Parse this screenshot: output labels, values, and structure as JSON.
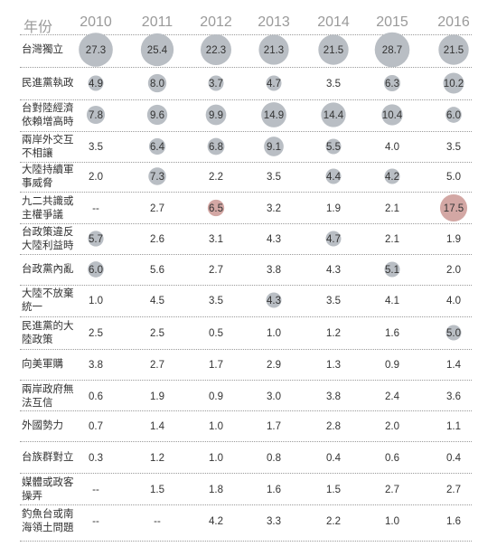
{
  "chart_data": {
    "type": "table",
    "corner_label": "年份",
    "years": [
      "2010",
      "2011",
      "2012",
      "2013",
      "2014",
      "2015",
      "2016"
    ],
    "rows": [
      {
        "label": "台灣獨立",
        "values": [
          "27.3",
          "25.4",
          "22.3",
          "21.3",
          "21.5",
          "28.7",
          "21.5"
        ],
        "circled": [
          true,
          true,
          true,
          true,
          true,
          true,
          true
        ]
      },
      {
        "label": "民進黨執政",
        "values": [
          "4.9",
          "8.0",
          "3.7",
          "4.7",
          "3.5",
          "6.3",
          "10.2"
        ],
        "circled": [
          true,
          true,
          true,
          true,
          false,
          true,
          true
        ]
      },
      {
        "label": "台對陸經濟依賴增高時",
        "values": [
          "7.8",
          "9.6",
          "9.9",
          "14.9",
          "14.4",
          "10.4",
          "6.0"
        ],
        "circled": [
          true,
          true,
          true,
          true,
          true,
          true,
          true
        ]
      },
      {
        "label": "兩岸外交互不相讓",
        "values": [
          "3.5",
          "6.4",
          "6.8",
          "9.1",
          "5.5",
          "4.0",
          "3.5"
        ],
        "circled": [
          false,
          true,
          true,
          true,
          true,
          false,
          false
        ]
      },
      {
        "label": "大陸持續軍事威脅",
        "values": [
          "2.0",
          "7.3",
          "2.2",
          "3.5",
          "4.4",
          "4.2",
          "5.0"
        ],
        "circled": [
          false,
          true,
          false,
          false,
          true,
          true,
          false
        ]
      },
      {
        "label": "九二共識或主權爭議",
        "values": [
          "--",
          "2.7",
          "6.5",
          "3.2",
          "1.9",
          "2.1",
          "17.5"
        ],
        "circled": [
          false,
          false,
          true,
          false,
          false,
          false,
          true
        ]
      },
      {
        "label": "台政策違反大陸利益時",
        "values": [
          "5.7",
          "2.6",
          "3.1",
          "4.3",
          "4.7",
          "2.1",
          "1.9"
        ],
        "circled": [
          true,
          false,
          false,
          false,
          true,
          false,
          false
        ]
      },
      {
        "label": "台政黨內亂",
        "values": [
          "6.0",
          "5.6",
          "2.7",
          "3.8",
          "4.3",
          "5.1",
          "2.0"
        ],
        "circled": [
          true,
          false,
          false,
          false,
          false,
          true,
          false
        ]
      },
      {
        "label": "大陸不放棄統一",
        "values": [
          "1.0",
          "4.5",
          "3.5",
          "4.3",
          "3.5",
          "4.1",
          "4.0"
        ],
        "circled": [
          false,
          false,
          false,
          true,
          false,
          false,
          false
        ]
      },
      {
        "label": "民進黨的大陸政策",
        "values": [
          "2.5",
          "2.5",
          "0.5",
          "1.0",
          "1.2",
          "1.6",
          "5.0"
        ],
        "circled": [
          false,
          false,
          false,
          false,
          false,
          false,
          true
        ]
      },
      {
        "label": "向美軍購",
        "values": [
          "3.8",
          "2.7",
          "1.7",
          "2.9",
          "1.3",
          "0.9",
          "1.4"
        ],
        "circled": [
          false,
          false,
          false,
          false,
          false,
          false,
          false
        ]
      },
      {
        "label": "兩岸政府無法互信",
        "values": [
          "0.6",
          "1.9",
          "0.9",
          "3.0",
          "3.8",
          "2.4",
          "3.6"
        ],
        "circled": [
          false,
          false,
          false,
          false,
          false,
          false,
          false
        ]
      },
      {
        "label": "外國勢力",
        "values": [
          "0.7",
          "1.4",
          "1.0",
          "1.7",
          "2.8",
          "2.0",
          "1.1"
        ],
        "circled": [
          false,
          false,
          false,
          false,
          false,
          false,
          false
        ]
      },
      {
        "label": "台族群對立",
        "values": [
          "0.3",
          "1.2",
          "1.0",
          "0.8",
          "0.4",
          "0.6",
          "0.4"
        ],
        "circled": [
          false,
          false,
          false,
          false,
          false,
          false,
          false
        ]
      },
      {
        "label": "媒體或政客操弄",
        "values": [
          "--",
          "1.5",
          "1.8",
          "1.6",
          "1.5",
          "2.7",
          "2.7"
        ],
        "circled": [
          false,
          false,
          false,
          false,
          false,
          false,
          false
        ]
      },
      {
        "label": "釣魚台或南海領土問題",
        "values": [
          "--",
          "--",
          "4.2",
          "3.3",
          "2.2",
          "1.0",
          "1.6"
        ],
        "circled": [
          false,
          false,
          false,
          false,
          false,
          false,
          false
        ]
      }
    ],
    "colors": {
      "circle_gray": "#b9bec4",
      "circle_red": "#d3a7a4",
      "header_text": "#9a9a9a",
      "body_text": "#333333"
    }
  }
}
